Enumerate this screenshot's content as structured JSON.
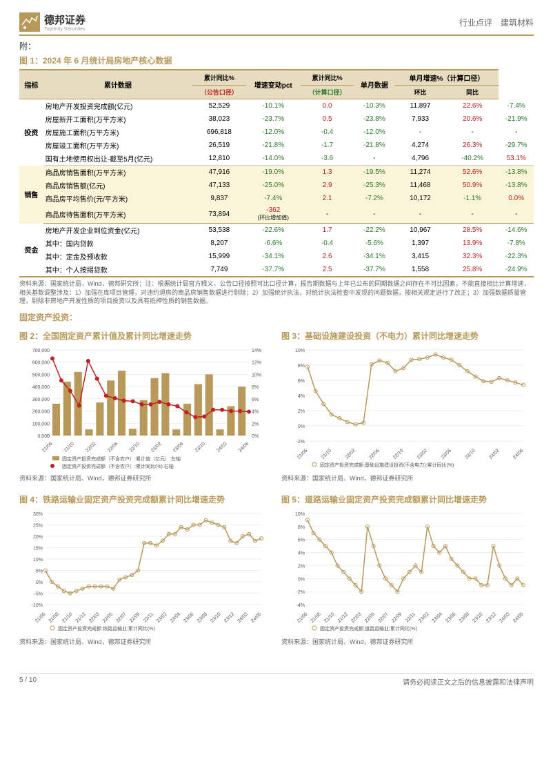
{
  "header": {
    "logo_text": "德邦证券",
    "logo_sub": "Toprenty Securities",
    "right": "行业点评　建筑材料",
    "attach": "附：",
    "logo_bg": "#b8995a",
    "logo_fg": "#ffffff"
  },
  "figure1": {
    "title": "图 1：2024 年 6 月统计局房地产核心数据",
    "headers": {
      "indicator": "指标",
      "cum": "累计数据",
      "cum_yoy_announce": "累计同比%",
      "cum_yoy_announce_sub": "（公告口径）",
      "chg_pct": "增速变动pct",
      "cum_yoy_calc": "累计同比%",
      "cum_yoy_calc_sub": "（计算口径）",
      "single": "单月数据",
      "single_chg": "单月增速%（计算口径）",
      "mom": "环比",
      "yoy": "同比"
    },
    "groups": [
      {
        "name": "投资",
        "rows": [
          {
            "label": "房地产开发投资完成额(亿元)",
            "cum": "52,529",
            "cum_yoy_a": "-10.1%",
            "chg": "0.0",
            "cum_yoy_c": "-10.3%",
            "single": "11,897",
            "mom": "22.6%",
            "yoy": "-7.4%"
          },
          {
            "label": "房屋新开工面积(万平方米)",
            "cum": "38,023",
            "cum_yoy_a": "-23.7%",
            "chg": "0.5",
            "cum_yoy_c": "-23.8%",
            "single": "7,933",
            "mom": "20.6%",
            "yoy": "-21.9%"
          },
          {
            "label": "房屋施工面积(万平方米)",
            "cum": "696,818",
            "cum_yoy_a": "-12.0%",
            "chg": "-0.4",
            "cum_yoy_c": "-12.0%",
            "single": "-",
            "mom": "-",
            "yoy": "-"
          },
          {
            "label": "房屋竣工面积(万平方米)",
            "cum": "26,519",
            "cum_yoy_a": "-21.8%",
            "chg": "-1.7",
            "cum_yoy_c": "-21.8%",
            "single": "4,274",
            "mom": "26.3%",
            "yoy": "-29.7%"
          },
          {
            "label": "国有土地使用权出让-截至5月(亿元)",
            "cum": "12,810",
            "cum_yoy_a": "-14.0%",
            "chg": "-3.6",
            "cum_yoy_c": "-",
            "single": "4,796",
            "mom": "-40.2%",
            "yoy": "53.1%"
          }
        ]
      },
      {
        "name": "销售",
        "highlight": true,
        "rows": [
          {
            "label": "商品房销售面积(万平方米)",
            "cum": "47,916",
            "cum_yoy_a": "-19.0%",
            "chg": "1.3",
            "cum_yoy_c": "-19.5%",
            "single": "11,274",
            "mom": "52.6%",
            "yoy": "-13.8%"
          },
          {
            "label": "商品房销售额(亿元)",
            "cum": "47,133",
            "cum_yoy_a": "-25.0%",
            "chg": "2.9",
            "cum_yoy_c": "-25.3%",
            "single": "11,468",
            "mom": "50.9%",
            "yoy": "-13.8%"
          },
          {
            "label": "商品房平均售价(元/平方米)",
            "cum": "9,837",
            "cum_yoy_a": "-7.4%",
            "chg": "2.1",
            "cum_yoy_c": "-7.2%",
            "single": "10,172",
            "mom": "-1.1%",
            "yoy": "0.0%"
          },
          {
            "label": "商品房待售面积(万平方米)",
            "cum": "73,894",
            "cum_yoy_a": "-362",
            "cum_yoy_a_sub": "(环比增加值)",
            "chg": "-",
            "cum_yoy_c": "-",
            "single": "-",
            "mom": "-",
            "yoy": "-"
          }
        ]
      },
      {
        "name": "资金",
        "rows": [
          {
            "label": "房地产开发企业到位资金(亿元)",
            "cum": "53,538",
            "cum_yoy_a": "-22.6%",
            "chg": "1.7",
            "cum_yoy_c": "-22.2%",
            "single": "10,967",
            "mom": "28.5%",
            "yoy": "-14.6%"
          },
          {
            "label": "其中：国内贷款",
            "cum": "8,207",
            "cum_yoy_a": "-6.6%",
            "chg": "-0.4",
            "cum_yoy_c": "-5.6%",
            "single": "1,397",
            "mom": "13.9%",
            "yoy": "-7.8%"
          },
          {
            "label": "其中：定金及预收款",
            "cum": "15,999",
            "cum_yoy_a": "-34.1%",
            "chg": "2.6",
            "cum_yoy_c": "-34.1%",
            "single": "3,415",
            "mom": "32.3%",
            "yoy": "-22.3%"
          },
          {
            "label": "其中：个人按揭贷款",
            "cum": "7,749",
            "cum_yoy_a": "-37.7%",
            "chg": "2.5",
            "cum_yoy_c": "-37.7%",
            "single": "1,558",
            "mom": "25.8%",
            "yoy": "-24.9%"
          }
        ]
      }
    ],
    "source": "资料来源：国家统计局，Wind，德邦研究所；注：根据统计局官方释义，公告口径按照可比口径计算，报告期数据与上年已公布的同期数据之间存在不可比因素，不能直接相比计算增速，相关基数调整涉及：1）加强在库项目管理，对违约退房的商品房销售数据进行剔除；2）加强统计执法，对统计执法检查中发现的问题数据，按相关规定进行了改正；3）加强数据质量管理，剔除非房地产开发性质的项目投资以及具有抵押性质的销售数据。"
  },
  "section2_title": "固定资产投资：",
  "figure2": {
    "title": "图 2：全国固定资产累计值及累计同比增速走势",
    "source": "资料来源：国家统计局、Wind，德邦证券研究所",
    "x_labels": [
      "21/06",
      "21/10",
      "22/02",
      "22/06",
      "22/10",
      "23/02",
      "23/06",
      "23/10",
      "24/02",
      "24/06"
    ],
    "left_axis": {
      "min": 0,
      "max": 700000,
      "step": 100000
    },
    "right_axis": {
      "min": 0,
      "max": 14,
      "step": 2,
      "unit": "%"
    },
    "bar": {
      "color": "#b8995a",
      "values": [
        260000,
        440000,
        520000,
        50000,
        270000,
        450000,
        530000,
        55000,
        290000,
        470000,
        510000,
        50000,
        260000,
        420000,
        500000,
        50000,
        240000,
        400000
      ]
    },
    "line": {
      "color": "#c02020",
      "values": [
        12.6,
        9.0,
        7.3,
        4.9,
        12.2,
        9.3,
        6.5,
        6.1,
        5.7,
        5.6,
        5.1,
        5.1,
        5.5,
        5.1,
        4.8,
        3.8,
        3.0,
        3.1,
        4.2,
        4.2,
        4.0,
        4.0,
        3.9
      ]
    },
    "legend_bar": "固定资产投资完成额（不含农户）:累计值（亿元）:左轴",
    "legend_line": "固定资产投资完成额（不含农户）:累计同比(%):右轴"
  },
  "figure3": {
    "title": "图 3：基础设施建设投资（不电力）累计同比增速走势",
    "source": "资料来源：国家统计局、Wind，德邦证券研究所",
    "x_labels": [
      "21/06",
      "21/10",
      "22/02",
      "22/06",
      "22/10",
      "23/02",
      "23/06",
      "23/10",
      "24/02",
      "24/06"
    ],
    "y_axis": {
      "min": -2,
      "max": 10,
      "step": 2,
      "unit": "%"
    },
    "line": {
      "color": "#b8995a",
      "values": [
        7.8,
        4.6,
        2.9,
        1.5,
        1.0,
        0.5,
        0.2,
        0.4,
        8.1,
        8.6,
        8.3,
        7.2,
        7.6,
        8.7,
        8.8,
        9.0,
        9.4,
        9.0,
        8.7,
        8.0,
        7.2,
        6.5,
        5.9,
        5.8,
        6.3,
        6.0,
        5.7,
        5.4
      ]
    },
    "legend": "固定资产投资完成额:基础设施建设投资(不含电力):累计同比(%)"
  },
  "figure4": {
    "title": "图 4：铁路运输业固定资产投资完成额累计同比增速走势",
    "source": "资料来源：国家统计局、Wind，德邦证券研究所",
    "x_labels": [
      "21/06",
      "21/08",
      "21/10",
      "21/12",
      "22/03",
      "22/05",
      "22/07",
      "22/09",
      "22/11",
      "23/02",
      "23/04",
      "23/06",
      "23/08",
      "23/10",
      "23/12",
      "24/03",
      "24/05"
    ],
    "y_axis": {
      "min": -10,
      "max": 30,
      "step": 5,
      "unit": "%"
    },
    "line": {
      "color": "#b8995a",
      "values": [
        5,
        0,
        -2,
        -4,
        -5,
        -4,
        -3,
        -2,
        -2,
        -2,
        -2,
        -3,
        1,
        2,
        3,
        5,
        17,
        17,
        16,
        18,
        21,
        21,
        24,
        23,
        25,
        25,
        27,
        26,
        25,
        24,
        18,
        17,
        20,
        21,
        18,
        19
      ]
    },
    "legend": "固定资产投资完成额:铁路运输业:累计同比(%)"
  },
  "figure5": {
    "title": "图 5：道路运输业固定资产投资完成额累计同比增速走势",
    "source": "资料来源：国家统计局、Wind，德邦证券研究所",
    "x_labels": [
      "21/06",
      "21/08",
      "21/10",
      "21/12",
      "22/03",
      "22/05",
      "22/07",
      "22/09",
      "22/11",
      "23/02",
      "23/04",
      "23/06",
      "23/08",
      "23/10",
      "23/12",
      "24/03",
      "24/05"
    ],
    "y_axis": {
      "min": -4,
      "max": 10,
      "step": 2,
      "unit": "%"
    },
    "line": {
      "color": "#b8995a",
      "values": [
        9,
        7,
        6,
        5,
        4,
        2,
        1,
        0,
        -1,
        -2,
        8,
        5,
        2,
        0,
        -1,
        -2,
        0,
        1,
        2,
        1,
        8,
        5,
        4,
        5,
        3,
        2,
        1,
        0,
        0,
        -1,
        -1,
        5,
        2,
        0,
        -1,
        0,
        -1
      ]
    },
    "legend": "固定资产投资完成额:道路运输业:累计同比(%)"
  },
  "footer": {
    "page": "5 / 10",
    "disclaimer": "请务必阅读正文之后的信息披露和法律声明"
  },
  "colors": {
    "accent": "#b8995a",
    "neg": "#2a7a2a",
    "pos": "#c02020",
    "head_bg": "#e8dcc0",
    "hl_bg": "#faf4d8"
  }
}
